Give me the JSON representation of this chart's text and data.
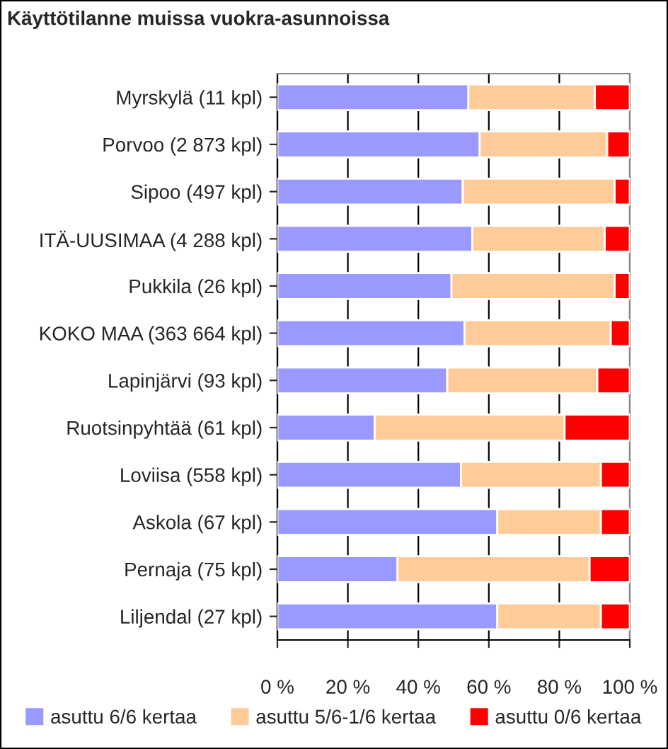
{
  "chart_data": {
    "type": "bar",
    "orientation": "horizontal",
    "stacked": true,
    "title": "Käyttötilanne muissa vuokra-asunnoissa",
    "categories": [
      "Myrskylä (11 kpl)",
      "Porvoo (2 873 kpl)",
      "Sipoo (497 kpl)",
      "ITÄ-UUSIMAA (4 288 kpl)",
      "Pukkila (26 kpl)",
      "KOKO MAA (363 664 kpl)",
      "Lapinjärvi (93 kpl)",
      "Ruotsinpyhtää (61 kpl)",
      "Loviisa (558 kpl)",
      "Askola (67 kpl)",
      "Pernaja (75 kpl)",
      "Liljendal (27 kpl)"
    ],
    "series": [
      {
        "name": "asuttu 6/6 kertaa",
        "color": "#9999ff",
        "values": [
          54.2,
          57.4,
          52.6,
          55.3,
          49.4,
          53.1,
          48.2,
          27.6,
          52.1,
          62.4,
          34.1,
          62.4
        ]
      },
      {
        "name": "asuttu 5/6-1/6 kertaa",
        "color": "#ffcc99",
        "values": [
          35.9,
          36.2,
          43.1,
          37.6,
          46.3,
          41.5,
          42.6,
          53.9,
          39.7,
          29.4,
          54.5,
          29.4
        ]
      },
      {
        "name": "asuttu 0/6 kertaa",
        "color": "#ff0000",
        "values": [
          9.9,
          6.4,
          4.3,
          7.1,
          4.3,
          5.4,
          9.2,
          18.5,
          8.2,
          8.2,
          11.4,
          8.2
        ]
      }
    ],
    "xlim": [
      0,
      100
    ],
    "xticks": [
      {
        "value": 0,
        "label": "0 %"
      },
      {
        "value": 20,
        "label": "20 %"
      },
      {
        "value": 40,
        "label": "40 %"
      },
      {
        "value": 60,
        "label": "60 %"
      },
      {
        "value": 80,
        "label": "80 %"
      },
      {
        "value": 100,
        "label": "100 %"
      }
    ],
    "grid": "x",
    "legend": "bottom"
  }
}
